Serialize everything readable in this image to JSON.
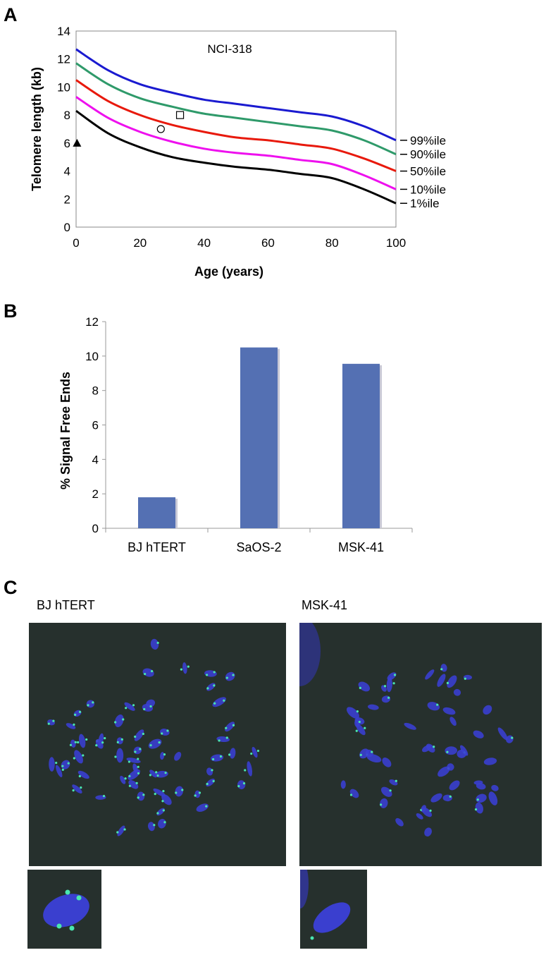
{
  "panel_labels": {
    "a": "A",
    "b": "B",
    "c": "C"
  },
  "chart_data": [
    {
      "type": "line",
      "annotation": "NCI-318",
      "xlabel": "Age (years)",
      "ylabel": "Telomere length (kb)",
      "xlim": [
        0,
        100
      ],
      "ylim": [
        0,
        14
      ],
      "xticks": [
        0,
        20,
        40,
        60,
        80,
        100
      ],
      "yticks": [
        0,
        2,
        4,
        6,
        8,
        10,
        12,
        14
      ],
      "grid": false,
      "x": [
        0,
        10,
        20,
        30,
        40,
        50,
        60,
        70,
        80,
        90,
        100
      ],
      "series": [
        {
          "name": "99%ile",
          "color": "#1a1ad0",
          "values": [
            12.7,
            11.2,
            10.2,
            9.6,
            9.1,
            8.8,
            8.5,
            8.2,
            7.9,
            7.2,
            6.2
          ]
        },
        {
          "name": "90%ile",
          "color": "#2f9a6a",
          "values": [
            11.7,
            10.2,
            9.2,
            8.6,
            8.1,
            7.8,
            7.5,
            7.2,
            6.9,
            6.2,
            5.2
          ]
        },
        {
          "name": "50%ile",
          "color": "#e8190c",
          "values": [
            10.5,
            9.0,
            8.0,
            7.3,
            6.8,
            6.4,
            6.2,
            5.9,
            5.6,
            4.9,
            4.0
          ]
        },
        {
          "name": "10%ile",
          "color": "#ee10ee",
          "values": [
            9.3,
            7.8,
            6.8,
            6.1,
            5.6,
            5.3,
            5.1,
            4.8,
            4.5,
            3.7,
            2.7
          ]
        },
        {
          "name": "1%ile",
          "color": "#000000",
          "values": [
            8.3,
            6.7,
            5.7,
            5.0,
            4.6,
            4.3,
            4.1,
            3.8,
            3.5,
            2.7,
            1.7
          ]
        }
      ],
      "markers": [
        {
          "shape": "triangle",
          "fill": "#000000",
          "x": 0.3,
          "y": 6.0
        },
        {
          "shape": "circle",
          "fill": "none",
          "x": 26.5,
          "y": 7.0
        },
        {
          "shape": "square",
          "fill": "none",
          "x": 32.5,
          "y": 8.0
        }
      ],
      "legend": "right-end labels"
    },
    {
      "type": "bar",
      "ylabel": "% Signal Free Ends",
      "xlabel": "",
      "categories": [
        "BJ hTERT",
        "SaOS-2",
        "MSK-41"
      ],
      "values": [
        1.8,
        10.5,
        9.55
      ],
      "ylim": [
        0,
        12
      ],
      "yticks": [
        0,
        2,
        4,
        6,
        8,
        10,
        12
      ],
      "bar_color": "#5470b3",
      "grid": false
    }
  ],
  "micrographs": {
    "left_label": "BJ hTERT",
    "right_label": "MSK-41",
    "background_color": "#26302d",
    "chromosome_color": "#3a3fcf",
    "signal_color": "#49e6b0"
  }
}
